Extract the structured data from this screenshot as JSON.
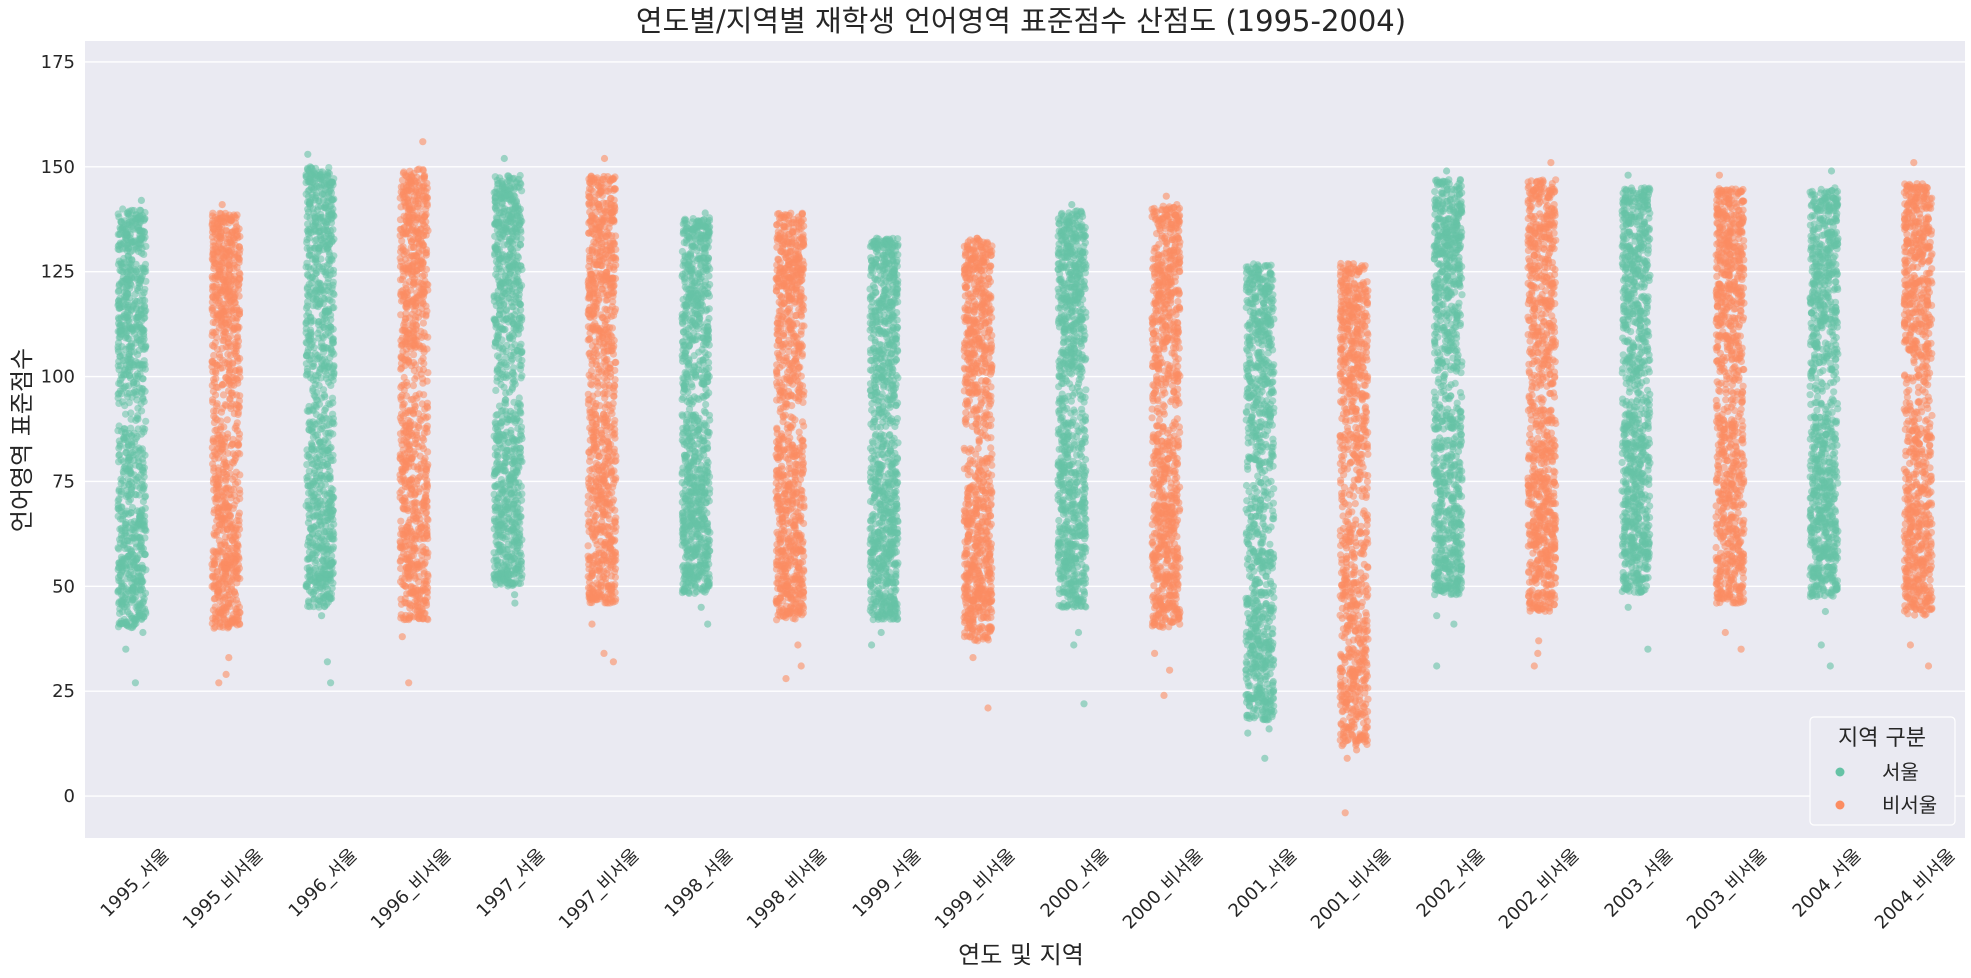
{
  "chart_data": {
    "type": "scatter",
    "subtype": "strip",
    "title": "연도별/지역별 재학생 언어영역 표준점수 산점도 (1995-2004)",
    "xlabel": "연도 및 지역",
    "ylabel": "언어영역 표준점수",
    "ylim": [
      -10,
      180
    ],
    "yticks": [
      0,
      25,
      50,
      75,
      100,
      125,
      150,
      175
    ],
    "grid": true,
    "background": "#EAEAF2",
    "legend": {
      "title": "지역 구분",
      "placement": "lower-right",
      "entries": [
        {
          "label": "서울",
          "color": "#66C2A5"
        },
        {
          "label": "비서울",
          "color": "#FC8D62"
        }
      ]
    },
    "categories": [
      "1995_서울",
      "1995_비서울",
      "1996_서울",
      "1996_비서울",
      "1997_서울",
      "1997_비서울",
      "1998_서울",
      "1998_비서울",
      "1999_서울",
      "1999_비서울",
      "2000_서울",
      "2000_비서울",
      "2001_서울",
      "2001_비서울",
      "2002_서울",
      "2002_비서울",
      "2003_서울",
      "2003_비서울",
      "2004_서울",
      "2004_비서울"
    ],
    "series": [
      {
        "name": "서울",
        "color": "#66C2A5",
        "categories": [
          "1995_서울",
          "1996_서울",
          "1997_서울",
          "1998_서울",
          "1999_서울",
          "2000_서울",
          "2001_서울",
          "2002_서울",
          "2003_서울",
          "2004_서울"
        ],
        "dense_range": [
          [
            40,
            140
          ],
          [
            45,
            150
          ],
          [
            50,
            148
          ],
          [
            48,
            138
          ],
          [
            42,
            133
          ],
          [
            45,
            140
          ],
          [
            18,
            127
          ],
          [
            48,
            147
          ],
          [
            48,
            145
          ],
          [
            47,
            145
          ]
        ],
        "outliers": [
          [
            27,
            35,
            39,
            142
          ],
          [
            27,
            32,
            43,
            153
          ],
          [
            46,
            48,
            152
          ],
          [
            41,
            45,
            139
          ],
          [
            36,
            39,
            133
          ],
          [
            22,
            36,
            39,
            141
          ],
          [
            9,
            15,
            16
          ],
          [
            31,
            41,
            43,
            149
          ],
          [
            35,
            45,
            148
          ],
          [
            31,
            36,
            44,
            149
          ]
        ]
      },
      {
        "name": "비서울",
        "color": "#FC8D62",
        "categories": [
          "1995_비서울",
          "1996_비서울",
          "1997_비서울",
          "1998_비서울",
          "1999_비서울",
          "2000_비서울",
          "2001_비서울",
          "2002_비서울",
          "2003_비서울",
          "2004_비서울"
        ],
        "dense_range": [
          [
            40,
            139
          ],
          [
            42,
            150
          ],
          [
            46,
            148
          ],
          [
            42,
            139
          ],
          [
            37,
            133
          ],
          [
            40,
            141
          ],
          [
            12,
            127
          ],
          [
            44,
            147
          ],
          [
            46,
            145
          ],
          [
            43,
            146
          ]
        ],
        "outliers": [
          [
            27,
            29,
            33,
            141
          ],
          [
            27,
            38,
            156
          ],
          [
            32,
            34,
            41,
            152
          ],
          [
            28,
            31,
            36
          ],
          [
            21,
            33
          ],
          [
            24,
            30,
            34,
            143
          ],
          [
            -4,
            9,
            11
          ],
          [
            31,
            34,
            37,
            151
          ],
          [
            35,
            39,
            148
          ],
          [
            31,
            36,
            151
          ]
        ]
      }
    ]
  }
}
